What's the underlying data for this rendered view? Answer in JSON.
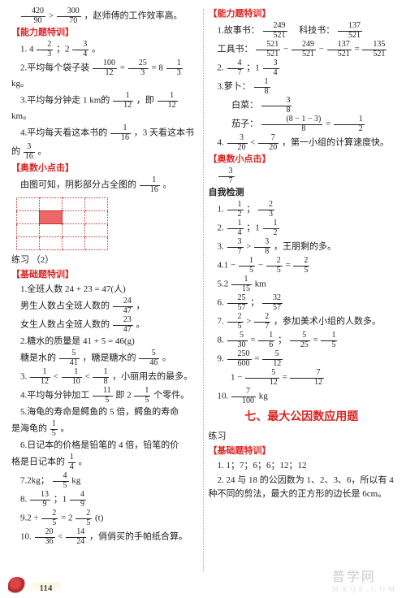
{
  "left": {
    "top_expr": {
      "a": "420",
      "b": "90",
      "c": "300",
      "d": "70",
      "tail": "，赵师傅的工作效率高。"
    },
    "h1": "【能力题特训】",
    "l1": {
      "num": "1.",
      "lead": "4",
      "an": "2",
      "ad": "3",
      "mid": "；2",
      "bn": "3",
      "bd": "4",
      "tail": "。"
    },
    "l2": {
      "num": "2.",
      "txt": "平均每个袋子装",
      "an": "100",
      "ad": "12",
      "eq": "=",
      "bn": "25",
      "bd": "3",
      "eq2": "= 8",
      "cn": "1",
      "cd": "3",
      "tail": "kg。"
    },
    "l3": {
      "num": "3.",
      "txt": "平均每分钟走 1 km的",
      "an": "1",
      "ad": "12",
      "mid": "，即",
      "bn": "1",
      "bd": "12",
      "tail": "km。"
    },
    "l4": {
      "num": "4.",
      "txt": "平均每天看这本书的",
      "an": "1",
      "ad": "16",
      "mid": "，3 天看这本书"
    },
    "l4b": {
      "txt": "的",
      "an": "3",
      "ad": "16",
      "tail": "。"
    },
    "h2": "【奥数小点击】",
    "ol": {
      "txt": "由图可知，阴影部分占全图的",
      "n": "1",
      "d": "16",
      "tail": "。"
    },
    "sub": "练习 （2）",
    "h3": "【基础题特训】",
    "b1": "1.全班人数 24 + 23 = 47(人)",
    "b1a": {
      "txt": "男生人数占全班人数的",
      "n": "24",
      "d": "47",
      "tail": "，"
    },
    "b1b": {
      "txt": "女生人数占全班人数的",
      "n": "23",
      "d": "47",
      "tail": "。"
    },
    "b2": "2.糖水的质量是 41 + 5 = 46(g)",
    "b2a": {
      "txt": "糖是水的",
      "an": "5",
      "ad": "41",
      "mid": "，糖是糖水的",
      "bn": "5",
      "bd": "46",
      "tail": "。"
    },
    "b3": {
      "num": "3.",
      "an": "1",
      "ad": "12",
      "lt": "<",
      "bn": "1",
      "bd": "10",
      "lt2": "<",
      "cn": "1",
      "cd": "8",
      "tail": "，小丽用去的最多。"
    },
    "b4": {
      "num": "4.",
      "txt": "平均每分钟加工",
      "an": "11",
      "ad": "5",
      "mid": "即 2",
      "bn": "1",
      "bd": "5",
      "tail": "个零件。"
    },
    "b5": {
      "num": "5.",
      "txt": "海龟的寿命是鳄鱼的 5 倍，鳄鱼的寿命"
    },
    "b5b": {
      "txt": "是海龟的",
      "n": "1",
      "d": "5",
      "tail": "。"
    },
    "b6": {
      "num": "6.",
      "txt": "日记本的价格是铅笔的 4 倍，铅笔的价"
    },
    "b6b": {
      "txt": "格是日记本的",
      "n": "1",
      "d": "4",
      "tail": "。"
    },
    "b7": {
      "num": "7.",
      "txt": "2kg；",
      "n": "4",
      "d": "5",
      "tail": " kg"
    },
    "b8": {
      "num": "8.",
      "an": "13",
      "ad": "9",
      "mid": "；1",
      "bn": "4",
      "bd": "9"
    },
    "b9": {
      "num": "9.",
      "txt": "2 ÷",
      "an": "2",
      "ad": "5",
      "eq": "= 2",
      "bn": "2",
      "bd": "5",
      "tail": "(t)"
    },
    "b10": {
      "num": "10.",
      "an": "20",
      "ad": "36",
      "lt": "<",
      "bn": "14",
      "bd": "24",
      "tail": "，俏俏买的手帕纸合算。"
    }
  },
  "right": {
    "h1": "【能力题特训】",
    "r1": {
      "num": "1.",
      "lab1": "故事书：",
      "an": "249",
      "ad": "521",
      "lab2": "　科技书：",
      "bn": "137",
      "bd": "521"
    },
    "r1b": {
      "lab": "工具书：",
      "an": "521",
      "ad": "521",
      "m1": " − ",
      "bn": "249",
      "bd": "521",
      "m2": " − ",
      "cn": "137",
      "cd": "521",
      "eq": " = ",
      "dn": "135",
      "dd": "521"
    },
    "r2": {
      "num": "2.",
      "an": "4",
      "ad": "7",
      "mid": "；1",
      "bn": "3",
      "bd": "4"
    },
    "r3": {
      "num": "3.",
      "lab1": "萝卜：",
      "an": "1",
      "ad": "8"
    },
    "r3b": {
      "lab": "白菜：",
      "an": "3",
      "ad": "8"
    },
    "r3c": {
      "lab": "茄子：",
      "topL": "(8 − 1 − 3)",
      "bot": "8",
      "eq": " = ",
      "n": "1",
      "d": "2"
    },
    "r4": {
      "num": "4.",
      "an": "3",
      "ad": "20",
      "lt": "<",
      "bn": "7",
      "bd": "20",
      "tail": "，第一小组的计算速度快。"
    },
    "h2": "【奥数小点击】",
    "o": {
      "n": "3",
      "d": "7"
    },
    "self": "自我检测",
    "s1": {
      "num": "1.",
      "an": "1",
      "ad": "2",
      "mid": "；",
      "bn": "2",
      "bd": "3"
    },
    "s2": {
      "num": "2.",
      "an": "1",
      "ad": "4",
      "mid": "；1",
      "bn": "1",
      "bd": "2"
    },
    "s3": {
      "num": "3.",
      "an": "3",
      "ad": "7",
      ">": ">",
      "bn": "3",
      "bd": "8",
      "tail": "，王朋剩的多。"
    },
    "s4": {
      "num": "4.",
      "txt": "1 −",
      "an": "1",
      "ad": "5",
      "m": "−",
      "bn": "2",
      "bd": "5",
      "eq": "=",
      "cn": "2",
      "cd": "5"
    },
    "s5": {
      "num": "5.",
      "lead": "2",
      "an": "1",
      "ad": "15",
      "tail": " km"
    },
    "s6": {
      "num": "6.",
      "an": "25",
      "ad": "57",
      "mid": "；",
      "bn": "32",
      "bd": "57"
    },
    "s7": {
      "num": "7.",
      "an": "2",
      "ad": "5",
      ">": ">",
      "bn": "2",
      "bd": "7",
      "tail": "，参加美术小组的人数多。"
    },
    "s8": {
      "num": "8.",
      "an": "5",
      "ad": "30",
      "eq": "=",
      "bn": "1",
      "bd": "6",
      "mid": "；",
      "cn": "5",
      "cd": "25",
      "eq2": "=",
      "dn": "1",
      "dd": "5"
    },
    "s9": {
      "num": "9.",
      "an": "250",
      "ad": "600",
      "eq": "=",
      "bn": "5",
      "bd": "12"
    },
    "s9b": {
      "txt": "1 −",
      "an": "5",
      "ad": "12",
      "eq": "=",
      "bn": "7",
      "bd": "12"
    },
    "s10": {
      "num": "10.",
      "an": "7",
      "ad": "100",
      "tail": " kg"
    },
    "bigh": "七、最大公因数应用题",
    "sub2": "练习",
    "h3": "【基础题特训】",
    "g1": "1. 1；7；6；6；12；12",
    "g2": "2. 24 与 18 的公因数为 1、2、3、6，所以有 4 种不同的剪法，最大的正方形的边长是 6cm。"
  },
  "footer": {
    "page": "114",
    "wm1": "普学网",
    "wm2": "MXQE.COM"
  }
}
